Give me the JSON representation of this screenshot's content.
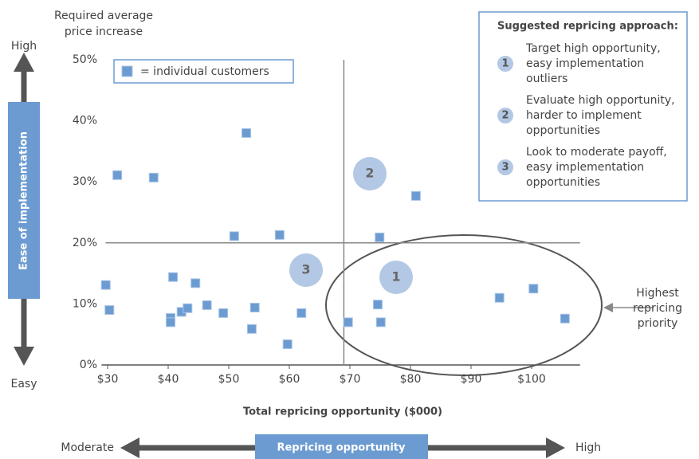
{
  "chart_data": {
    "type": "scatter",
    "y_label": [
      "Required average",
      "price increase"
    ],
    "x_label": "Total repricing opportunity ($000)",
    "xlim": [
      29,
      108
    ],
    "ylim": [
      0,
      50
    ],
    "xticks": [
      {
        "value": 30,
        "label": "$30"
      },
      {
        "value": 40,
        "label": "$40"
      },
      {
        "value": 50,
        "label": "$50"
      },
      {
        "value": 60,
        "label": "$60"
      },
      {
        "value": 70,
        "label": "$70"
      },
      {
        "value": 80,
        "label": "$80"
      },
      {
        "value": 90,
        "label": "$90"
      },
      {
        "value": 100,
        "label": "$100"
      }
    ],
    "yticks": [
      {
        "value": 0,
        "label": "0%"
      },
      {
        "value": 10,
        "label": "10%"
      },
      {
        "value": 20,
        "label": "20%"
      },
      {
        "value": 30,
        "label": "30%"
      },
      {
        "value": 40,
        "label": "40%"
      },
      {
        "value": 50,
        "label": "50%"
      }
    ],
    "series": [
      {
        "name": "= individual customers",
        "color": "#6b9bd1",
        "x": [
          29.7,
          30.3,
          31.6,
          37.6,
          40.8,
          40.4,
          40.4,
          42.2,
          43.2,
          44.5,
          46.4,
          49.1,
          50.9,
          52.9,
          53.8,
          54.3,
          58.4,
          59.7,
          62.0,
          69.7,
          74.6,
          74.9,
          75.1,
          80.9,
          94.7,
          100.3,
          105.5
        ],
        "values": [
          13.1,
          9.0,
          31.1,
          30.7,
          14.4,
          7.7,
          7.0,
          8.7,
          9.3,
          13.4,
          9.8,
          8.5,
          21.1,
          38.0,
          5.9,
          9.4,
          21.3,
          3.4,
          8.5,
          7.0,
          9.9,
          20.9,
          7.0,
          27.7,
          11.0,
          12.5,
          7.6
        ]
      }
    ],
    "dividers": {
      "x": 69,
      "y": 20
    },
    "zones": [
      "1",
      "2",
      "3"
    ]
  },
  "sidebar": {
    "title": "Suggested repricing approach:",
    "items": [
      {
        "number": "1",
        "lines": [
          "Target high opportunity,",
          "easy  implementation",
          "outliers"
        ]
      },
      {
        "number": "2",
        "lines": [
          "Evaluate high opportunity,",
          "harder to implement",
          "opportunities"
        ]
      },
      {
        "number": "3",
        "lines": [
          "Look to moderate payoff,",
          "easy  implementation",
          "opportunities"
        ]
      }
    ]
  },
  "y_axis_arrow": {
    "top": "High",
    "label": "Ease of implementation",
    "bottom": "Easy"
  },
  "x_axis_arrow": {
    "left": "Moderate",
    "label": "Repricing opportunity",
    "right": "High"
  },
  "callout": [
    "Highest",
    "repricing",
    "priority"
  ]
}
